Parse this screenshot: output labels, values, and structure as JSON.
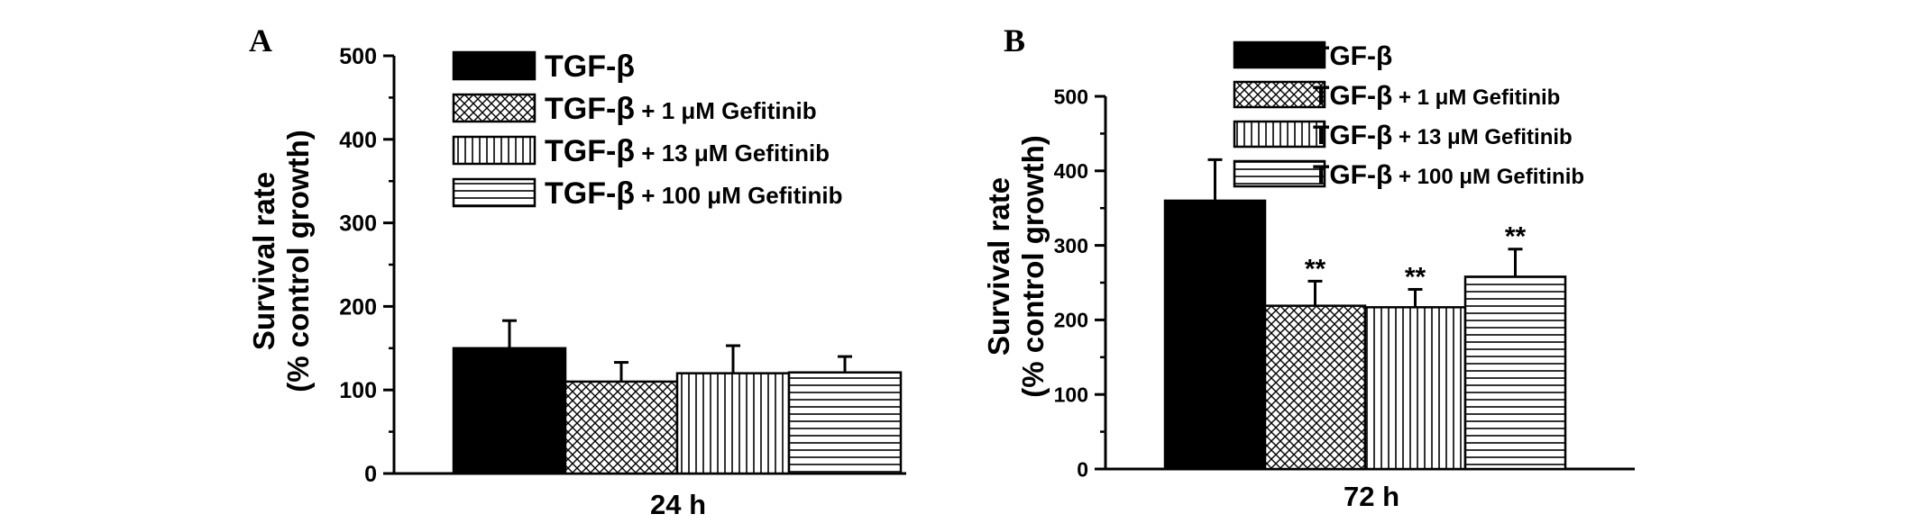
{
  "figure": {
    "colors": {
      "ink": "#000000",
      "background": "#ffffff"
    },
    "legend_entries": [
      {
        "main": "TGF-β",
        "suffix": "",
        "pattern": "solid"
      },
      {
        "main": "TGF-β",
        "suffix": " + 1 μM Gefitinib",
        "pattern": "crosshatch"
      },
      {
        "main": "TGF-β",
        "suffix": " + 13 μM Gefitinib",
        "pattern": "vertical"
      },
      {
        "main": "TGF-β",
        "suffix": " + 100 μM Gefitinib",
        "pattern": "horizontal"
      }
    ]
  },
  "chart_data": [
    {
      "panel": "A",
      "type": "bar",
      "xlabel": "24 h",
      "ylabel_line1": "Survival rate",
      "ylabel_line2": "(% control growth)",
      "ylim": [
        0,
        500
      ],
      "yticks": [
        0,
        100,
        200,
        300,
        400,
        500
      ],
      "yminor_step": 50,
      "legend_position": "top",
      "series": [
        {
          "name": "TGF-β",
          "value": 150,
          "error": 33,
          "annotation": ""
        },
        {
          "name": "TGF-β + 1 μM Gefitinib",
          "value": 110,
          "error": 23,
          "annotation": ""
        },
        {
          "name": "TGF-β + 13 μM Gefitinib",
          "value": 120,
          "error": 33,
          "annotation": ""
        },
        {
          "name": "TGF-β + 100 μM Gefitinib",
          "value": 121,
          "error": 19,
          "annotation": ""
        }
      ]
    },
    {
      "panel": "B",
      "type": "bar",
      "xlabel": "72 h",
      "ylabel_line1": "Survival rate",
      "ylabel_line2": "(% control growth)",
      "ylim": [
        0,
        500
      ],
      "yticks": [
        0,
        100,
        200,
        300,
        400,
        500
      ],
      "yminor_step": 50,
      "legend_position": "top",
      "series": [
        {
          "name": "TGF-β",
          "value": 360,
          "error": 55,
          "annotation": ""
        },
        {
          "name": "TGF-β + 1 μM Gefitinib",
          "value": 219,
          "error": 33,
          "annotation": "**"
        },
        {
          "name": "TGF-β + 13 μM Gefitinib",
          "value": 217,
          "error": 24,
          "annotation": "**"
        },
        {
          "name": "TGF-β + 100 μM Gefitinib",
          "value": 258,
          "error": 37,
          "annotation": "**"
        }
      ]
    }
  ]
}
